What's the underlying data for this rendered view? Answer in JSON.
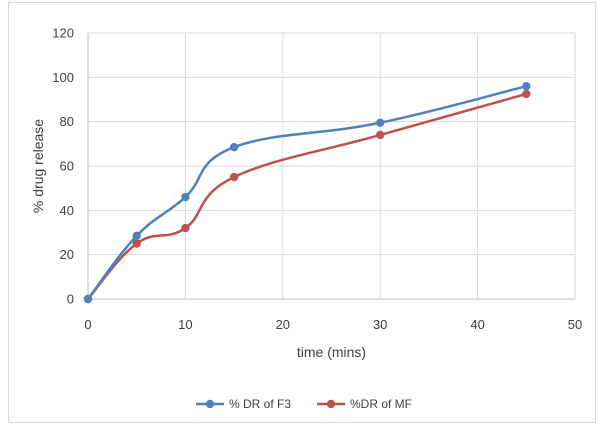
{
  "chart_data": {
    "type": "line",
    "title": "",
    "xlabel": "time (mins)",
    "ylabel": "% drug release",
    "xlim": [
      0,
      50
    ],
    "ylim": [
      0,
      120
    ],
    "xticks": [
      0,
      10,
      20,
      30,
      40,
      50
    ],
    "yticks": [
      0,
      20,
      40,
      60,
      80,
      100,
      120
    ],
    "grid": true,
    "legend_position": "bottom",
    "x": [
      0,
      5,
      10,
      15,
      30,
      45
    ],
    "series": [
      {
        "name": "% DR of F3",
        "color": "#4f81bd",
        "values": [
          0,
          28.5,
          46,
          68.5,
          79.5,
          96
        ]
      },
      {
        "name": "%DR of MF",
        "color": "#c0504d",
        "values": [
          0,
          25,
          32,
          55,
          74,
          92.5
        ]
      }
    ]
  }
}
